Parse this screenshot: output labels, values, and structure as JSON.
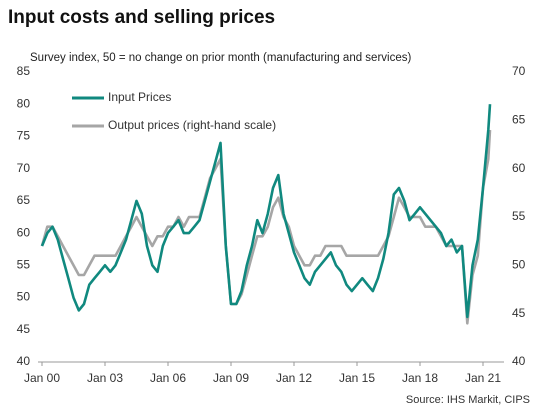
{
  "chart_data": {
    "type": "line",
    "title": "Input costs and selling prices",
    "subtitle": "Survey index, 50 = no change on prior month (manufacturing and services)",
    "source": "Source: IHS Markit, CIPS",
    "legend": "upper left",
    "x": [
      "2000-01",
      "2000-04",
      "2000-07",
      "2000-10",
      "2001-01",
      "2001-04",
      "2001-07",
      "2001-10",
      "2002-01",
      "2002-04",
      "2002-07",
      "2002-10",
      "2003-01",
      "2003-04",
      "2003-07",
      "2003-10",
      "2004-01",
      "2004-04",
      "2004-07",
      "2004-10",
      "2005-01",
      "2005-04",
      "2005-07",
      "2005-10",
      "2006-01",
      "2006-04",
      "2006-07",
      "2006-10",
      "2007-01",
      "2007-04",
      "2007-07",
      "2007-10",
      "2008-01",
      "2008-04",
      "2008-07",
      "2008-10",
      "2009-01",
      "2009-04",
      "2009-07",
      "2009-10",
      "2010-01",
      "2010-04",
      "2010-07",
      "2010-10",
      "2011-01",
      "2011-04",
      "2011-07",
      "2011-10",
      "2012-01",
      "2012-04",
      "2012-07",
      "2012-10",
      "2013-01",
      "2013-04",
      "2013-07",
      "2013-10",
      "2014-01",
      "2014-04",
      "2014-07",
      "2014-10",
      "2015-01",
      "2015-04",
      "2015-07",
      "2015-10",
      "2016-01",
      "2016-04",
      "2016-07",
      "2016-10",
      "2017-01",
      "2017-04",
      "2017-07",
      "2017-10",
      "2018-01",
      "2018-04",
      "2018-07",
      "2018-10",
      "2019-01",
      "2019-04",
      "2019-07",
      "2019-10",
      "2020-01",
      "2020-04",
      "2020-07",
      "2020-10",
      "2021-01",
      "2021-04",
      "2021-05"
    ],
    "series": [
      {
        "name": "Input Prices",
        "color": "#10897f",
        "axis": "y",
        "values": [
          58,
          60,
          61,
          59,
          56,
          53,
          50,
          48,
          49,
          52,
          53,
          54,
          55,
          54,
          55,
          57,
          59,
          62,
          65,
          63,
          58,
          55,
          54,
          58,
          60,
          61,
          62,
          60,
          60,
          61,
          62,
          65,
          68,
          71,
          74,
          58,
          49,
          49,
          51,
          55,
          58,
          62,
          60,
          63,
          67,
          69,
          63,
          60,
          57,
          55,
          53,
          52,
          54,
          55,
          56,
          57,
          55,
          54,
          52,
          51,
          52,
          53,
          52,
          51,
          53,
          56,
          60,
          66,
          67,
          65,
          62,
          63,
          64,
          63,
          62,
          61,
          60,
          58,
          59,
          57,
          58,
          47,
          55,
          59,
          67,
          76,
          80
        ]
      },
      {
        "name": "Output prices (right-hand scale)",
        "color": "#a6a6a6",
        "axis": "y2",
        "values": [
          52,
          54,
          54,
          53,
          52,
          51,
          50,
          49,
          49,
          50,
          51,
          51,
          51,
          51,
          51,
          52,
          53,
          54,
          55,
          54,
          53,
          52,
          53,
          53,
          54,
          54,
          55,
          54,
          55,
          55,
          55,
          57,
          59,
          60,
          61,
          52,
          46,
          46,
          47,
          49,
          51,
          53,
          53,
          54,
          56,
          57,
          55,
          54,
          52,
          51,
          50,
          50,
          51,
          51,
          52,
          52,
          52,
          52,
          51,
          51,
          51,
          51,
          51,
          51,
          51,
          52,
          53,
          55,
          57,
          56,
          55,
          55,
          55,
          54,
          54,
          54,
          53,
          52,
          52,
          52,
          52,
          44,
          49,
          51,
          58,
          61,
          64
        ]
      }
    ],
    "xlim": [
      "2000-01",
      "2022-01"
    ],
    "xticks": [
      {
        "value": "2000-01",
        "label": "Jan 00"
      },
      {
        "value": "2003-01",
        "label": "Jan 03"
      },
      {
        "value": "2006-01",
        "label": "Jan 06"
      },
      {
        "value": "2009-01",
        "label": "Jan 09"
      },
      {
        "value": "2012-01",
        "label": "Jan 12"
      },
      {
        "value": "2015-01",
        "label": "Jan 15"
      },
      {
        "value": "2018-01",
        "label": "Jan 18"
      },
      {
        "value": "2021-01",
        "label": "Jan 21"
      }
    ],
    "ylim": [
      40,
      85
    ],
    "yticks": [
      40,
      45,
      50,
      55,
      60,
      65,
      70,
      75,
      80,
      85
    ],
    "y2lim": [
      40,
      70
    ],
    "y2ticks": [
      40,
      45,
      50,
      55,
      60,
      65,
      70
    ]
  }
}
